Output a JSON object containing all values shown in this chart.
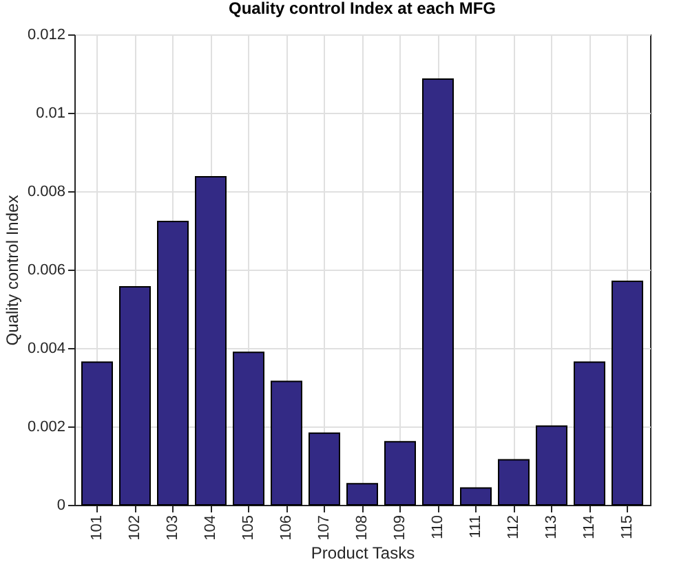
{
  "chart_data": {
    "type": "bar",
    "title": "Quality control Index at each MFG",
    "xlabel": "Product Tasks",
    "ylabel": "Quality control Index",
    "categories": [
      "101",
      "102",
      "103",
      "104",
      "105",
      "106",
      "107",
      "108",
      "109",
      "110",
      "111",
      "112",
      "113",
      "114",
      "115"
    ],
    "values": [
      0.00364,
      0.00556,
      0.00723,
      0.00837,
      0.00389,
      0.00315,
      0.00183,
      0.00054,
      0.00161,
      0.01086,
      0.00043,
      0.00115,
      0.00201,
      0.00364,
      0.0057
    ],
    "color": "#332a85",
    "ylim": [
      0,
      0.012
    ],
    "yticks": [
      0,
      0.002,
      0.004,
      0.006,
      0.008,
      0.01,
      0.012
    ],
    "grid": true
  }
}
